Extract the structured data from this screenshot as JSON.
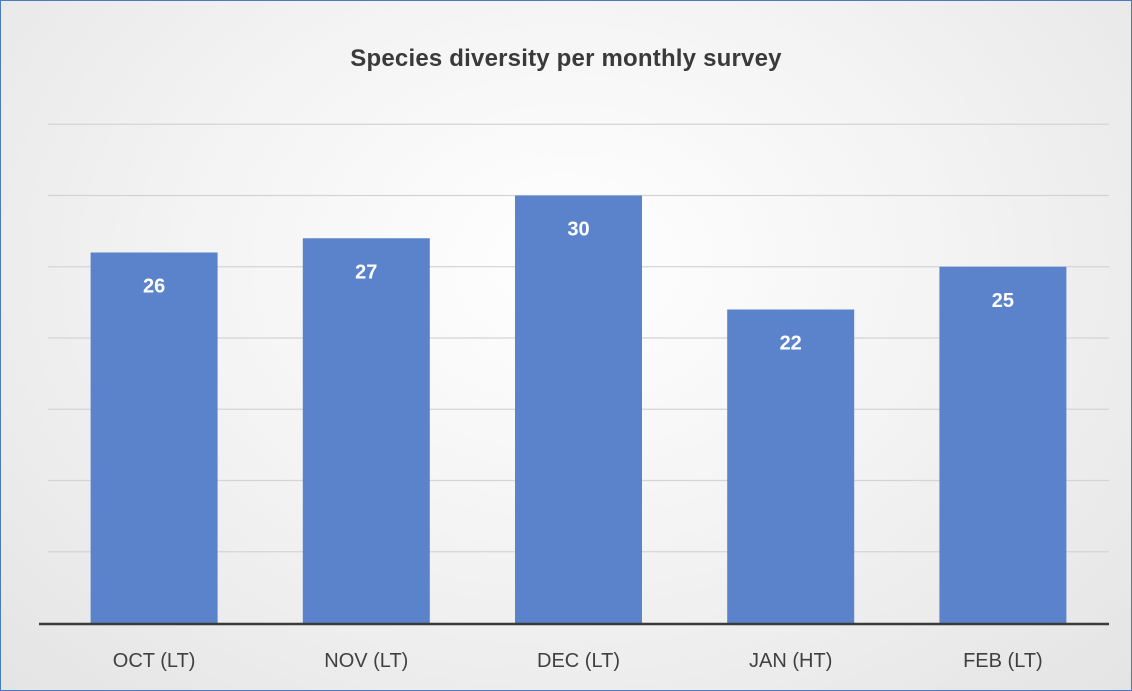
{
  "chart_data": {
    "type": "bar",
    "title": "Species diversity per monthly survey",
    "categories": [
      "OCT (LT)",
      "NOV (LT)",
      "DEC (LT)",
      "JAN (HT)",
      "FEB (LT)"
    ],
    "values": [
      26,
      27,
      30,
      22,
      25
    ],
    "data_labels": [
      "26",
      "27",
      "30",
      "22",
      "25"
    ],
    "xlabel": "",
    "ylabel": "",
    "ylim": [
      0,
      35
    ],
    "gridline_step": 5,
    "y_tick_labels_visible": false,
    "grid": true,
    "legend": "none",
    "colors": {
      "bar": "#5b83cc",
      "gridline": "#d4d4d4",
      "axis": "#3a3a3a",
      "data_label": "#ffffff",
      "frame_border": "#4a7bc1"
    }
  }
}
